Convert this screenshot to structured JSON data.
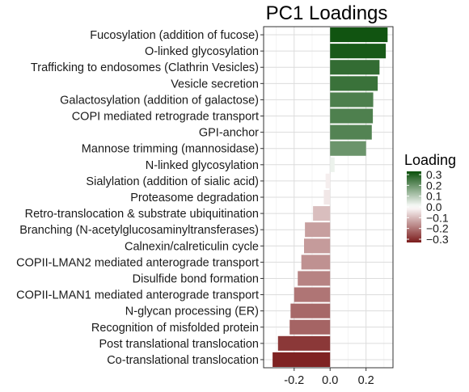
{
  "chart_data": {
    "type": "bar",
    "orientation": "horizontal",
    "title": "PC1 Loadings",
    "xlabel": "",
    "ylabel": "",
    "xlim": [
      -0.37,
      0.35
    ],
    "x_ticks": [
      -0.2,
      0.0,
      0.2
    ],
    "x_tick_labels": [
      "-0.2",
      "0.0",
      "0.2"
    ],
    "grid": true,
    "categories": [
      "Fucosylation (addition of fucose)",
      "O-linked glycosylation",
      "Trafficking to endosomes (Clathrin Vesicles)",
      "Vesicle secretion",
      "Galactosylation (addition of galactose)",
      "COPI mediated retrograde transport",
      "GPI-anchor",
      "Mannose trimming (mannosidase)",
      "N-linked glycosylation",
      "Sialylation (addition of sialic acid)",
      "Proteasome degradation",
      "Retro-translocation & substrate ubiquitination",
      "Branching (N-acetylglucosaminyltransferases)",
      "Calnexin/calreticulin cycle",
      "COPII-LMAN2 mediated anterograde transport",
      "Disulfide bond formation",
      "COPII-LMAN1 mediated anterograde transport",
      "N-glycan processing (ER)",
      "Recognition of misfolded protein",
      "Post translational translocation",
      "Co-translational translocation"
    ],
    "values": [
      0.32,
      0.31,
      0.275,
      0.265,
      0.24,
      0.238,
      0.232,
      0.2,
      0.025,
      -0.025,
      -0.035,
      -0.095,
      -0.14,
      -0.145,
      -0.16,
      -0.18,
      -0.2,
      -0.22,
      -0.225,
      -0.29,
      -0.32
    ],
    "legend": {
      "title": "Loading",
      "position": "right",
      "ticks": [
        0.3,
        0.2,
        0.1,
        0.0,
        -0.1,
        -0.2,
        -0.3
      ],
      "tick_labels": [
        "0.3",
        "0.2",
        "0.1",
        "0.0",
        "−0.1",
        "−0.2",
        "−0.3"
      ],
      "range": [
        -0.33,
        0.33
      ],
      "low_color": "#7b1c1c",
      "mid_color": "#ffffff",
      "high_color": "#0a4f0a"
    }
  }
}
